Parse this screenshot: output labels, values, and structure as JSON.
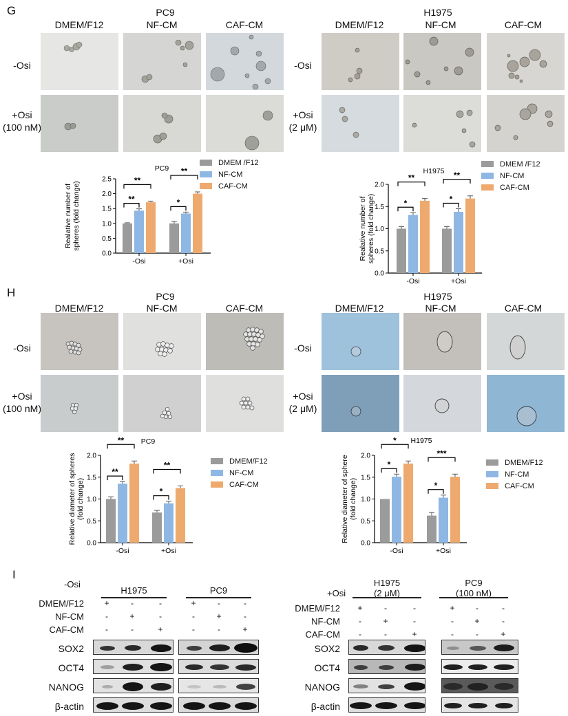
{
  "panels": {
    "G": {
      "letter": "G",
      "left": {
        "cell_line": "PC9",
        "columns": [
          "DMEM/F12",
          "NF-CM",
          "CAF-CM"
        ],
        "rows": [
          {
            "label": "-Osi",
            "sub": ""
          },
          {
            "label": "+Osi",
            "sub": "(100 nM)"
          }
        ]
      },
      "right": {
        "cell_line": "H1975",
        "columns": [
          "DMEM/F12",
          "NF-CM",
          "CAF-CM"
        ],
        "rows": [
          {
            "label": "-Osi",
            "sub": ""
          },
          {
            "label": "+Osi",
            "sub": "(2 μM)"
          }
        ]
      }
    },
    "H": {
      "letter": "H",
      "left": {
        "cell_line": "PC9",
        "columns": [
          "DMEM/F12",
          "NF-CM",
          "CAF-CM"
        ],
        "rows": [
          {
            "label": "-Osi",
            "sub": ""
          },
          {
            "label": "+Osi",
            "sub": "(100 nM)"
          }
        ]
      },
      "right": {
        "cell_line": "H1975",
        "columns": [
          "DMEM/F12",
          "NF-CM",
          "CAF-CM"
        ],
        "rows": [
          {
            "label": "-Osi",
            "sub": ""
          },
          {
            "label": "+Osi",
            "sub": "(2 μM)"
          }
        ]
      }
    },
    "I": {
      "letter": "I",
      "left": {
        "condition": "-Osi",
        "groups": [
          {
            "name": "H1975",
            "sub": ""
          },
          {
            "name": "PC9",
            "sub": ""
          }
        ],
        "treatment_rows": [
          {
            "label": "DMEM/F12",
            "signs": [
              "+",
              "-",
              "-",
              "+",
              "-",
              "-"
            ]
          },
          {
            "label": "NF-CM",
            "signs": [
              "-",
              "+",
              "-",
              "-",
              "+",
              "-"
            ]
          },
          {
            "label": "CAF-CM",
            "signs": [
              "-",
              "-",
              "+",
              "-",
              "-",
              "+"
            ]
          }
        ],
        "proteins": [
          "SOX2",
          "OCT4",
          "NANOG",
          "β-actin"
        ]
      },
      "right": {
        "condition": "+Osi",
        "groups": [
          {
            "name": "H1975",
            "sub": "(2 μM)"
          },
          {
            "name": "PC9",
            "sub": "(100 nM)"
          }
        ],
        "treatment_rows": [
          {
            "label": "DMEM/F12",
            "signs": [
              "+",
              "-",
              "-",
              "+",
              "-",
              "-"
            ]
          },
          {
            "label": "NF-CM",
            "signs": [
              "-",
              "+",
              "-",
              "-",
              "+",
              "-"
            ]
          },
          {
            "label": "CAF-CM",
            "signs": [
              "-",
              "-",
              "+",
              "-",
              "-",
              "+"
            ]
          }
        ],
        "proteins": [
          "SOX2",
          "OCT4",
          "NANOG",
          "β-actin"
        ]
      }
    }
  },
  "colors": {
    "DMEM/F12": "#9b9b9b",
    "NF-CM": "#8fb7e3",
    "CAF-CM": "#eeaa6e"
  },
  "chart_data": [
    {
      "id": "G-PC9",
      "type": "bar",
      "title": "PC9",
      "xlabel": "",
      "ylabel": "Realative number of spheres (fold change)",
      "categories": [
        "-Osi",
        "+Osi"
      ],
      "legend": [
        "DMEM /F12",
        "NF-CM",
        "CAF-CM"
      ],
      "legend_position": "top-right",
      "ylim": [
        0,
        2.5
      ],
      "yticks": [
        0.0,
        0.5,
        1.0,
        1.5,
        2.0,
        2.5
      ],
      "series": [
        {
          "name": "DMEM /F12",
          "values": [
            1.0,
            1.0
          ],
          "errors": [
            0.02,
            0.07
          ]
        },
        {
          "name": "NF-CM",
          "values": [
            1.43,
            1.33
          ],
          "errors": [
            0.06,
            0.05
          ]
        },
        {
          "name": "CAF-CM",
          "values": [
            1.71,
            2.0
          ],
          "errors": [
            0.04,
            0.06
          ]
        }
      ],
      "annotations": [
        {
          "group": "-Osi",
          "pair": [
            "DMEM /F12",
            "NF-CM"
          ],
          "label": "**"
        },
        {
          "group": "-Osi",
          "pair": [
            "DMEM /F12",
            "CAF-CM"
          ],
          "label": "**"
        },
        {
          "group": "+Osi",
          "pair": [
            "DMEM /F12",
            "NF-CM"
          ],
          "label": "*"
        },
        {
          "group": "+Osi",
          "pair": [
            "DMEM /F12",
            "CAF-CM"
          ],
          "label": "**"
        }
      ],
      "grid": false
    },
    {
      "id": "G-H1975",
      "type": "bar",
      "title": "H1975",
      "xlabel": "",
      "ylabel": "Realative number of spheres (fold change)",
      "categories": [
        "-Osi",
        "+Osi"
      ],
      "legend": [
        "DMEM /F12",
        "NF-CM",
        "CAF-CM"
      ],
      "legend_position": "top-right",
      "ylim": [
        0,
        2.0
      ],
      "yticks": [
        0.0,
        0.5,
        1.0,
        1.5,
        2.0
      ],
      "series": [
        {
          "name": "DMEM /F12",
          "values": [
            1.0,
            1.0
          ],
          "errors": [
            0.05,
            0.05
          ]
        },
        {
          "name": "NF-CM",
          "values": [
            1.31,
            1.38
          ],
          "errors": [
            0.05,
            0.07
          ]
        },
        {
          "name": "CAF-CM",
          "values": [
            1.63,
            1.68
          ],
          "errors": [
            0.05,
            0.06
          ]
        }
      ],
      "annotations": [
        {
          "group": "-Osi",
          "pair": [
            "DMEM /F12",
            "NF-CM"
          ],
          "label": "*"
        },
        {
          "group": "-Osi",
          "pair": [
            "DMEM /F12",
            "CAF-CM"
          ],
          "label": "**"
        },
        {
          "group": "+Osi",
          "pair": [
            "DMEM /F12",
            "NF-CM"
          ],
          "label": "*"
        },
        {
          "group": "+Osi",
          "pair": [
            "DMEM /F12",
            "CAF-CM"
          ],
          "label": "**"
        }
      ],
      "grid": false
    },
    {
      "id": "H-PC9",
      "type": "bar",
      "title": "PC9",
      "xlabel": "",
      "ylabel": "Relative diameter of spheres (fold change)",
      "categories": [
        "-Osi",
        "+Osi"
      ],
      "legend": [
        "DMEM/F12",
        "NF-CM",
        "CAF-CM"
      ],
      "legend_position": "right",
      "ylim": [
        0,
        2.0
      ],
      "yticks": [
        0.0,
        0.5,
        1.0,
        1.5,
        2.0
      ],
      "series": [
        {
          "name": "DMEM/F12",
          "values": [
            1.0,
            0.69
          ],
          "errors": [
            0.05,
            0.05
          ]
        },
        {
          "name": "NF-CM",
          "values": [
            1.35,
            0.9
          ],
          "errors": [
            0.05,
            0.05
          ]
        },
        {
          "name": "CAF-CM",
          "values": [
            1.81,
            1.25
          ],
          "errors": [
            0.06,
            0.05
          ]
        }
      ],
      "annotations": [
        {
          "group": "-Osi",
          "pair": [
            "DMEM/F12",
            "NF-CM"
          ],
          "label": "**"
        },
        {
          "group": "-Osi",
          "pair": [
            "DMEM/F12",
            "CAF-CM"
          ],
          "label": "**"
        },
        {
          "group": "+Osi",
          "pair": [
            "DMEM/F12",
            "NF-CM"
          ],
          "label": "*"
        },
        {
          "group": "+Osi",
          "pair": [
            "DMEM/F12",
            "CAF-CM"
          ],
          "label": "**"
        }
      ],
      "grid": false
    },
    {
      "id": "H-H1975",
      "type": "bar",
      "title": "H1975",
      "xlabel": "",
      "ylabel": "Relative diameter of sphere (fold change)",
      "categories": [
        "-Osi",
        "+Osi"
      ],
      "legend": [
        "DMEM/F12",
        "NF-CM",
        "CAF-CM"
      ],
      "legend_position": "right",
      "ylim": [
        0,
        2.0
      ],
      "yticks": [
        0.0,
        0.5,
        1.0,
        1.5,
        2.0
      ],
      "series": [
        {
          "name": "DMEM/F12",
          "values": [
            1.0,
            0.62
          ],
          "errors": [
            0.0,
            0.07
          ]
        },
        {
          "name": "NF-CM",
          "values": [
            1.51,
            1.03
          ],
          "errors": [
            0.06,
            0.06
          ]
        },
        {
          "name": "CAF-CM",
          "values": [
            1.81,
            1.51
          ],
          "errors": [
            0.06,
            0.06
          ]
        }
      ],
      "annotations": [
        {
          "group": "-Osi",
          "pair": [
            "DMEM/F12",
            "NF-CM"
          ],
          "label": "*"
        },
        {
          "group": "-Osi",
          "pair": [
            "DMEM/F12",
            "CAF-CM"
          ],
          "label": "*"
        },
        {
          "group": "+Osi",
          "pair": [
            "DMEM/F12",
            "NF-CM"
          ],
          "label": "*"
        },
        {
          "group": "+Osi",
          "pair": [
            "DMEM/F12",
            "CAF-CM"
          ],
          "label": "***"
        }
      ],
      "grid": false
    }
  ]
}
